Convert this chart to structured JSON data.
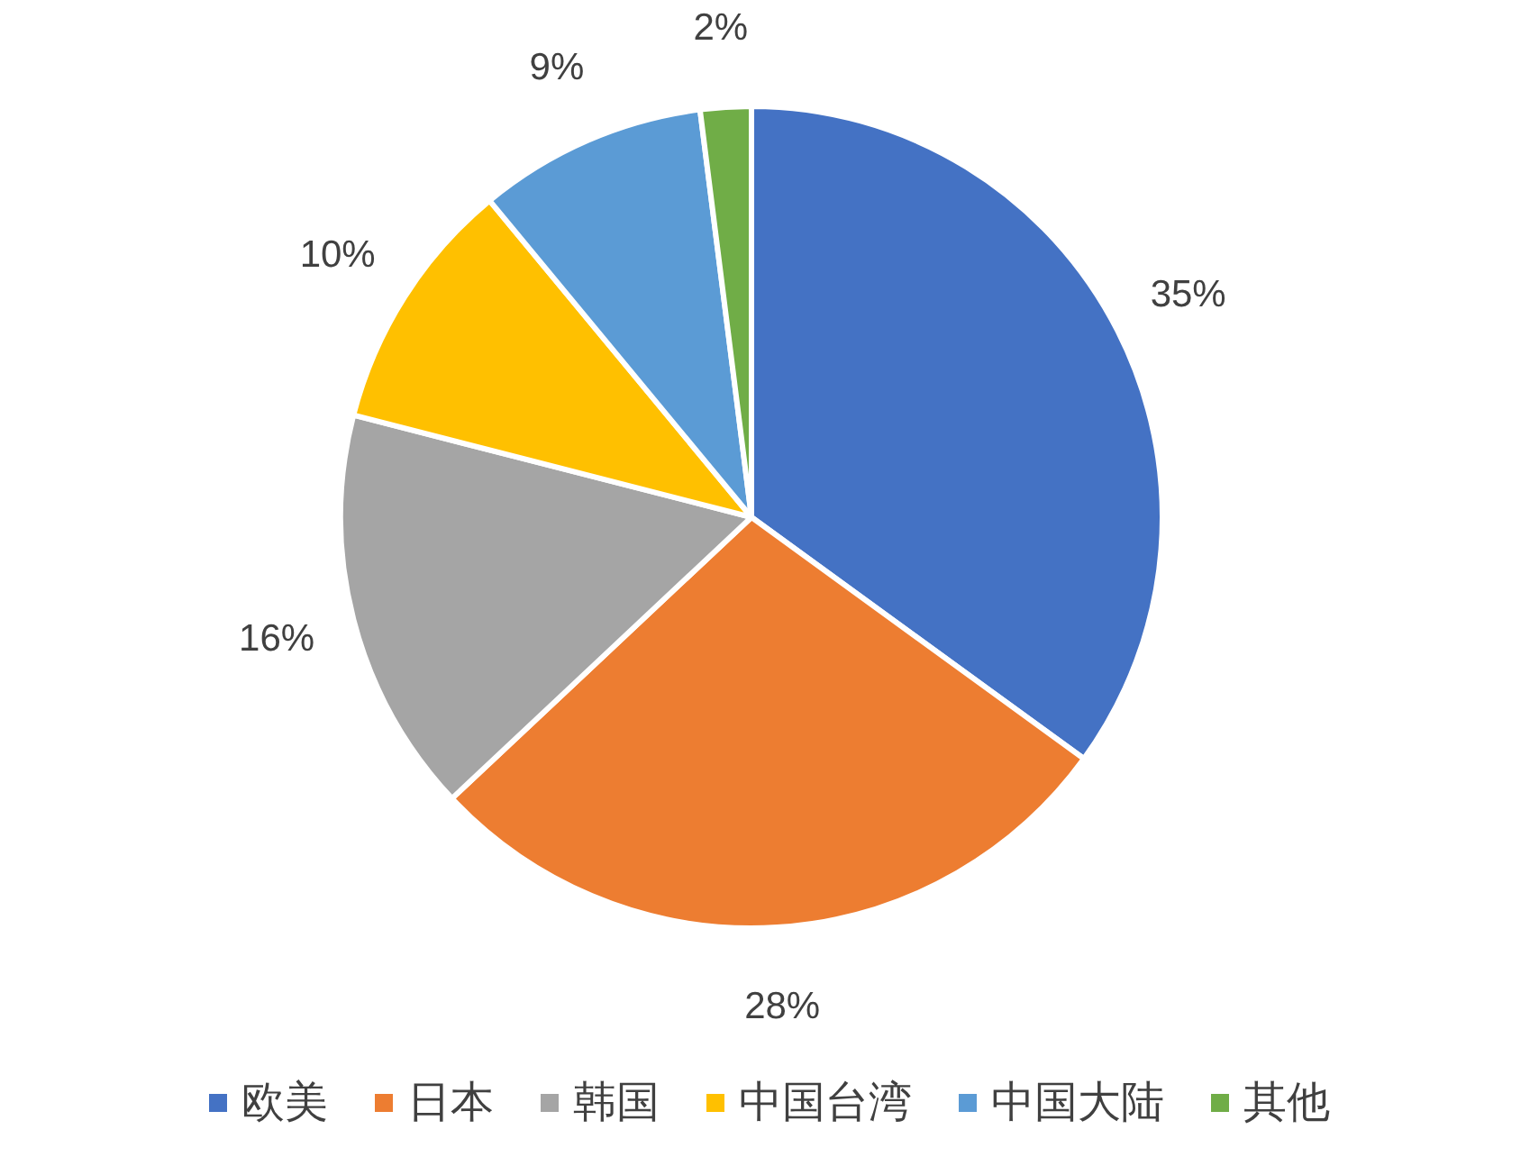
{
  "chart_data": {
    "type": "pie",
    "categories": [
      "欧美",
      "日本",
      "韩国",
      "中国台湾",
      "中国大陆",
      "其他"
    ],
    "values": [
      35,
      28,
      16,
      10,
      9,
      2
    ],
    "colors": [
      "#4472c4",
      "#ed7d31",
      "#a5a5a5",
      "#ffc000",
      "#5b9bd5",
      "#70ad47"
    ],
    "value_labels": [
      "35%",
      "28%",
      "16%",
      "10%",
      "9%",
      "2%"
    ],
    "legend": "bottom"
  }
}
